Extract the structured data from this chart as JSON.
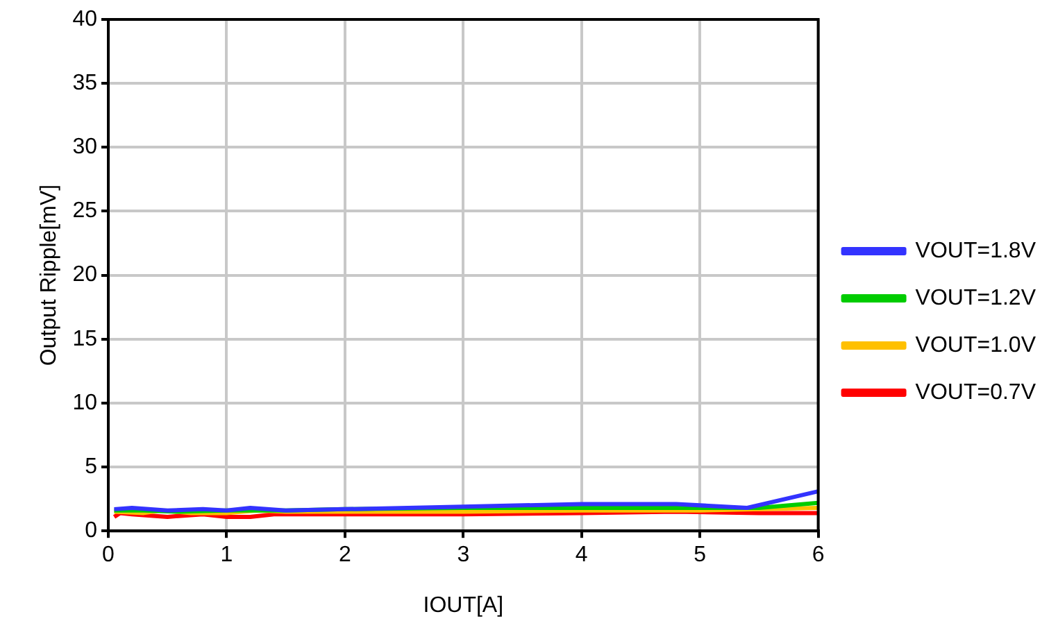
{
  "chart_data": {
    "type": "line",
    "xlabel": "IOUT[A]",
    "ylabel": "Output Ripple[mV]",
    "xlim": [
      0,
      6
    ],
    "xticks": [
      0,
      1,
      2,
      3,
      4,
      5,
      6
    ],
    "ylim": [
      0,
      40
    ],
    "yticks": [
      0,
      5,
      10,
      15,
      20,
      25,
      30,
      35,
      40
    ],
    "grid": true,
    "legend": "right",
    "marker": "none",
    "series": [
      {
        "name": "VOUT=1.8V",
        "color": "#3333ff",
        "x": [
          0.05,
          0.2,
          0.5,
          0.8,
          1,
          1.2,
          1.5,
          2,
          3,
          4,
          4.8,
          5.4,
          6
        ],
        "values": [
          1.7,
          1.8,
          1.6,
          1.7,
          1.6,
          1.8,
          1.6,
          1.7,
          1.9,
          2.1,
          2.1,
          1.8,
          3.1
        ]
      },
      {
        "name": "VOUT=1.2V",
        "color": "#00cc00",
        "x": [
          0.05,
          0.3,
          0.6,
          1,
          1.5,
          2,
          3,
          4,
          5,
          5.5,
          6
        ],
        "values": [
          1.6,
          1.6,
          1.5,
          1.6,
          1.6,
          1.7,
          1.8,
          1.8,
          1.8,
          1.8,
          2.2
        ]
      },
      {
        "name": "VOUT=1.0V",
        "color": "#ffc000",
        "x": [
          0.05,
          0.3,
          0.45,
          0.7,
          1,
          1.25,
          1.5,
          2,
          3,
          4,
          5,
          6
        ],
        "values": [
          1.5,
          1.4,
          1.6,
          1.4,
          1.4,
          1.6,
          1.5,
          1.5,
          1.5,
          1.6,
          1.6,
          1.8
        ]
      },
      {
        "name": "VOUT=0.7V",
        "color": "#ff0000",
        "x": [
          0.05,
          0.1,
          0.2,
          0.5,
          0.8,
          1,
          1.2,
          1.4,
          2,
          3,
          4,
          4.8,
          5.5,
          6
        ],
        "values": [
          1.1,
          1.4,
          1.3,
          1.1,
          1.3,
          1.1,
          1.1,
          1.3,
          1.3,
          1.3,
          1.4,
          1.5,
          1.4,
          1.4
        ]
      }
    ]
  }
}
